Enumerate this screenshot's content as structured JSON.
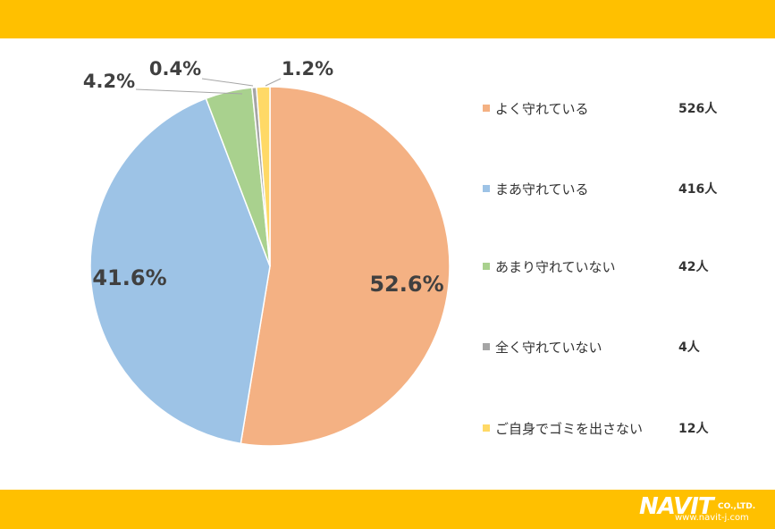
{
  "chart_data": {
    "type": "pie",
    "title": "",
    "slices": [
      {
        "label": "よく守れている",
        "value": 526,
        "percent": 52.6,
        "percent_text": "52.6%",
        "count_text": "526人",
        "color": "#F4B183"
      },
      {
        "label": "まあ守れている",
        "value": 416,
        "percent": 41.6,
        "percent_text": "41.6%",
        "count_text": "416人",
        "color": "#9DC3E6"
      },
      {
        "label": "あまり守れていない",
        "value": 42,
        "percent": 4.2,
        "percent_text": "4.2%",
        "count_text": "42人",
        "color": "#A9D18E"
      },
      {
        "label": "全く守れていない",
        "value": 4,
        "percent": 0.4,
        "percent_text": "0.4%",
        "count_text": "4人",
        "color": "#A5A5A5"
      },
      {
        "label": "ご自身でゴミを出さない",
        "value": 12,
        "percent": 1.2,
        "percent_text": "1.2%",
        "count_text": "12人",
        "color": "#FFD966"
      }
    ],
    "legend_position": "right"
  },
  "brand": {
    "logo_main": "NAVIT",
    "logo_suffix": "CO.,LTD.",
    "logo_url": "www.navit-j.com",
    "band_color": "#FFC000"
  }
}
